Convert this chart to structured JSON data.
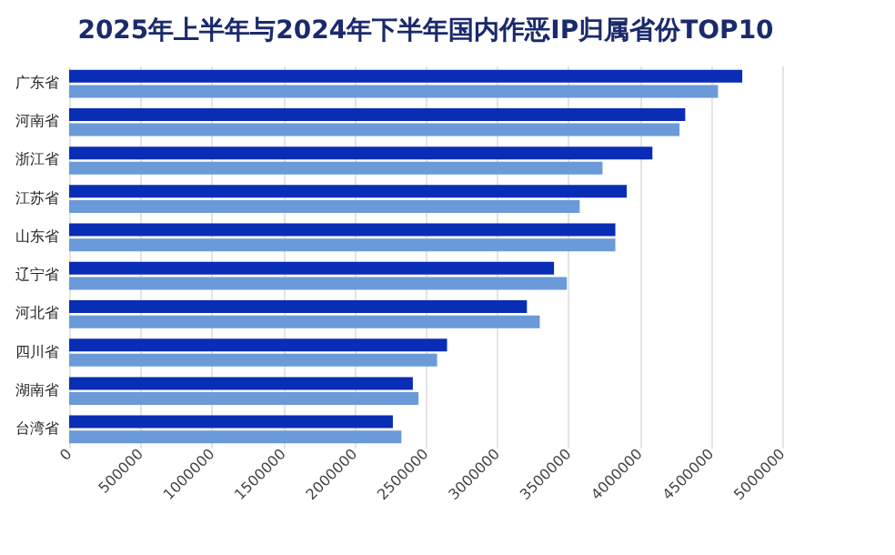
{
  "chart_data": {
    "type": "bar",
    "title": "2025年上半年与2024年下半年国内作恶IP归属省份TOP10",
    "orientation": "horizontal",
    "categories": [
      "广东省",
      "河南省",
      "浙江省",
      "江苏省",
      "山东省",
      "辽宁省",
      "河北省",
      "四川省",
      "湖南省",
      "台湾省"
    ],
    "series": [
      {
        "color": "#0a2db5",
        "values": [
          4720000,
          4320000,
          4090000,
          3910000,
          3830000,
          3400000,
          3210000,
          2650000,
          2410000,
          2270000
        ]
      },
      {
        "color": "#6a9ad8",
        "values": [
          4550000,
          4280000,
          3740000,
          3580000,
          3830000,
          3490000,
          3300000,
          2580000,
          2450000,
          2330000
        ]
      }
    ],
    "xlim": [
      0,
      5000000
    ],
    "xticks": [
      0,
      500000,
      1000000,
      1500000,
      2000000,
      2500000,
      3000000,
      3500000,
      4000000,
      4500000,
      5000000
    ],
    "grid": "x",
    "legend": false
  }
}
